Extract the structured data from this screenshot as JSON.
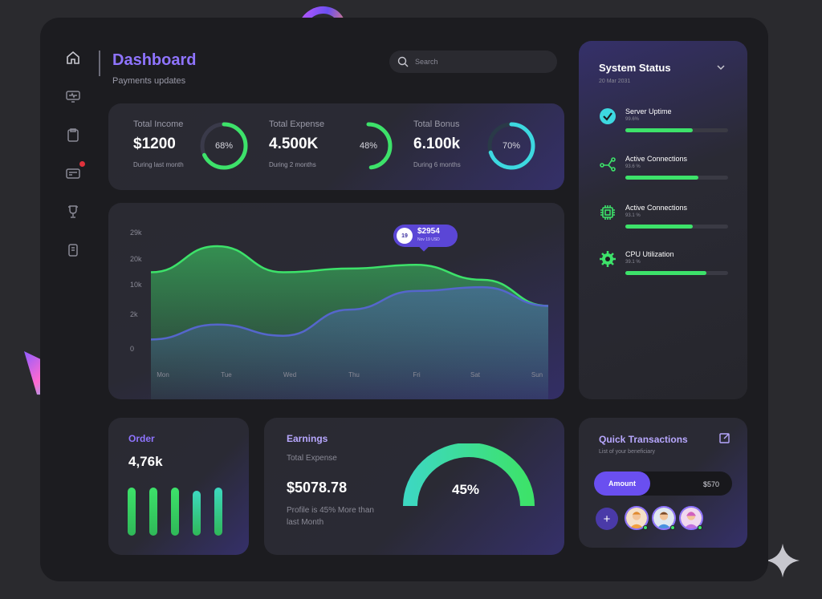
{
  "header": {
    "title": "Dashboard",
    "subtitle": "Payments updates",
    "search_placeholder": "Search"
  },
  "sidebar": {
    "items": [
      {
        "icon": "home-icon"
      },
      {
        "icon": "monitor-icon"
      },
      {
        "icon": "clipboard-icon"
      },
      {
        "icon": "card-icon",
        "badge": true
      },
      {
        "icon": "trophy-icon"
      },
      {
        "icon": "document-icon"
      }
    ]
  },
  "stats": [
    {
      "label": "Total Income",
      "value": "$1200",
      "sub": "During last month",
      "percent_label": "68%",
      "percent": 0.68,
      "color": "#3de26a"
    },
    {
      "label": "Total Expense",
      "value": "4.500K",
      "sub": "During 2 months",
      "percent_label": "48%",
      "percent": 0.48,
      "color": "#3de26a"
    },
    {
      "label": "Total Bonus",
      "value": "6.100k",
      "sub": "During 6 months",
      "percent_label": "70%",
      "percent": 0.7,
      "color": "#3dd8e0"
    }
  ],
  "chart_data": {
    "type": "area",
    "categories": [
      "Mon",
      "Tue",
      "Wed",
      "Thu",
      "Fri",
      "Sat",
      "Sun"
    ],
    "y_ticks": [
      "29k",
      "20k",
      "10k",
      "2k",
      "0"
    ],
    "series": [
      {
        "values": [
          19,
          26,
          19,
          20,
          21,
          17,
          10
        ],
        "color": "#3de26a"
      },
      {
        "values": [
          1,
          5,
          2,
          9,
          14,
          15,
          10
        ],
        "color": "#5566cc"
      }
    ],
    "tooltip": {
      "badge": "19",
      "value": "$2954",
      "sub": "Nov 19 USD"
    }
  },
  "system_status": {
    "title": "System Status",
    "date": "20 Mar 2031",
    "items": [
      {
        "name": "Server Uptime",
        "value": "99.6%",
        "level": 0.66,
        "icon": "check-circle-icon"
      },
      {
        "name": "Active Connections",
        "value": "93.6 %",
        "level": 0.71,
        "icon": "network-icon"
      },
      {
        "name": "Active Connections",
        "value": "93.1 %",
        "level": 0.66,
        "icon": "chip-icon"
      },
      {
        "name": "CPU Utilization",
        "value": "39.1 %",
        "level": 0.79,
        "icon": "gear-icon"
      }
    ]
  },
  "order": {
    "title": "Order",
    "value": "4,76k",
    "bars": [
      0.85,
      0.85,
      0.85,
      0.8,
      0.85
    ]
  },
  "earnings": {
    "title": "Earnings",
    "label": "Total Expense",
    "value": "$5078.78",
    "note_line1": "Profile is 45% More than",
    "note_line2": "last Month",
    "gauge_label": "45%"
  },
  "quick": {
    "title": "Quick Transactions",
    "subtitle": "List of your beneficiary",
    "amount_label": "Amount",
    "amount_value": "$570",
    "add_label": "+"
  },
  "colors": {
    "accent": "#8f74ff",
    "green": "#3de26a",
    "teal": "#3dd8e0",
    "background": "#1c1c20"
  }
}
